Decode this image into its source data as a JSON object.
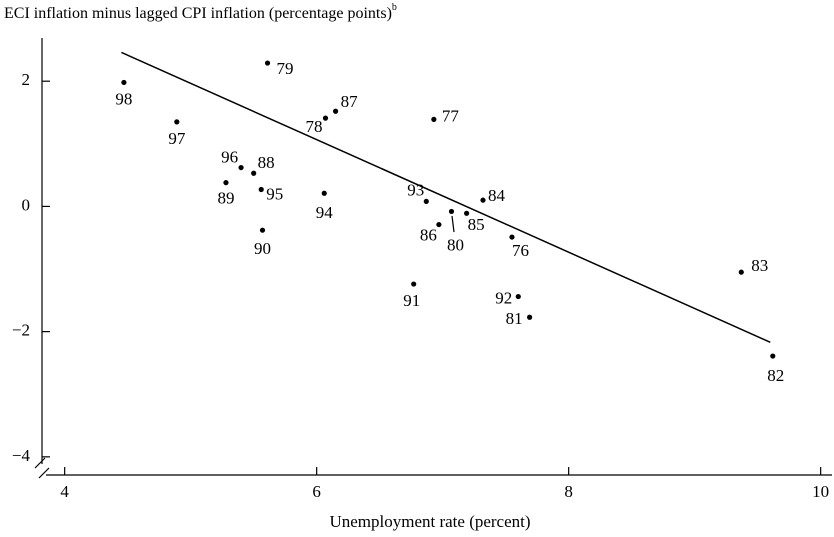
{
  "chart_data": {
    "type": "scatter",
    "title": "ECI inflation minus lagged CPI inflation (percentage points)",
    "title_note": "b",
    "x_label": "Unemployment rate (percent)",
    "xlim": [
      3.82,
      10.09
    ],
    "ylim": [
      -4.29,
      2.69
    ],
    "xticks": [
      4,
      6,
      8,
      10
    ],
    "yticks": [
      2,
      0,
      {
        "value": -2,
        "label": "−2"
      },
      {
        "value": -4,
        "label": "−4"
      }
    ],
    "color": "#000000",
    "series": [
      {
        "labels": [
          "98",
          "97",
          "79",
          "87",
          "78",
          "77",
          "96",
          "88",
          "89",
          "95",
          "94",
          "90",
          "93",
          "84",
          "80",
          "85",
          "86",
          "76",
          "91",
          "92",
          "81",
          "83",
          "82"
        ],
        "x": [
          4.47,
          4.89,
          5.61,
          6.15,
          6.07,
          6.93,
          5.4,
          5.5,
          5.28,
          5.56,
          6.06,
          5.57,
          6.87,
          7.32,
          7.07,
          7.19,
          6.97,
          7.55,
          6.77,
          7.6,
          7.69,
          9.37,
          9.62
        ],
        "values": [
          1.98,
          1.35,
          2.29,
          1.52,
          1.41,
          1.39,
          0.62,
          0.53,
          0.38,
          0.27,
          0.21,
          -0.38,
          0.08,
          0.1,
          -0.08,
          -0.11,
          -0.29,
          -0.49,
          -1.24,
          -1.44,
          -1.77,
          -1.05,
          -2.39
        ]
      }
    ],
    "fit_line": {
      "x": [
        4.45,
        9.6
      ],
      "values": [
        2.46,
        -2.17
      ]
    }
  }
}
